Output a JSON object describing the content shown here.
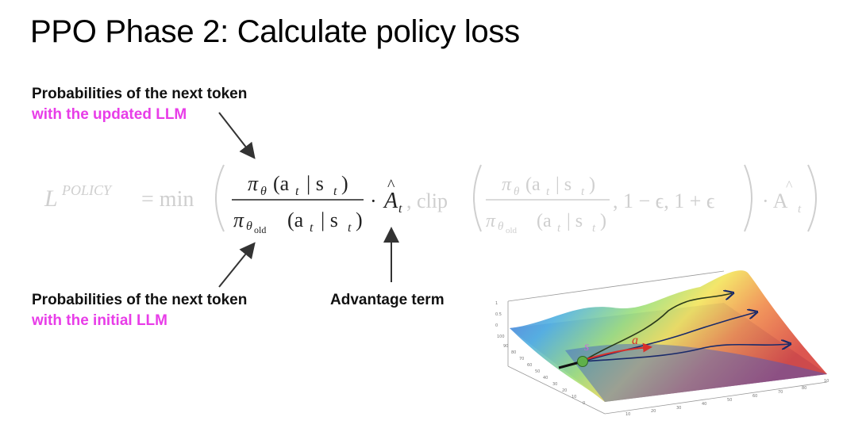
{
  "title": "PPO Phase 2: Calculate policy loss",
  "labels": {
    "updated_line1": "Probabilities of the next token",
    "updated_line2": "with the updated LLM",
    "initial_line1": "Probabilities of the next token",
    "initial_line2": "with the initial LLM",
    "advantage": "Advantage term"
  },
  "formula": {
    "lhs": "L",
    "lhs_sup": "POLICY",
    "eq_min": "= min",
    "pi": "π",
    "theta": "θ",
    "theta_old": "θ",
    "old": "old",
    "args": "(a",
    "t": "t",
    "bar_s": "| s",
    "close": ")",
    "dot": "·",
    "A": "A",
    "comma_clip": ", clip",
    "one_minus_eps": ", 1 − ϵ, 1 + ϵ",
    "dot_A": "· A"
  },
  "plot": {
    "state_label": "s",
    "action_label": "a",
    "colors": {
      "magenta": "#e83de8",
      "arrow": "#333333",
      "faded_formula": "#cfcfcf",
      "dark_formula": "#222222"
    }
  }
}
